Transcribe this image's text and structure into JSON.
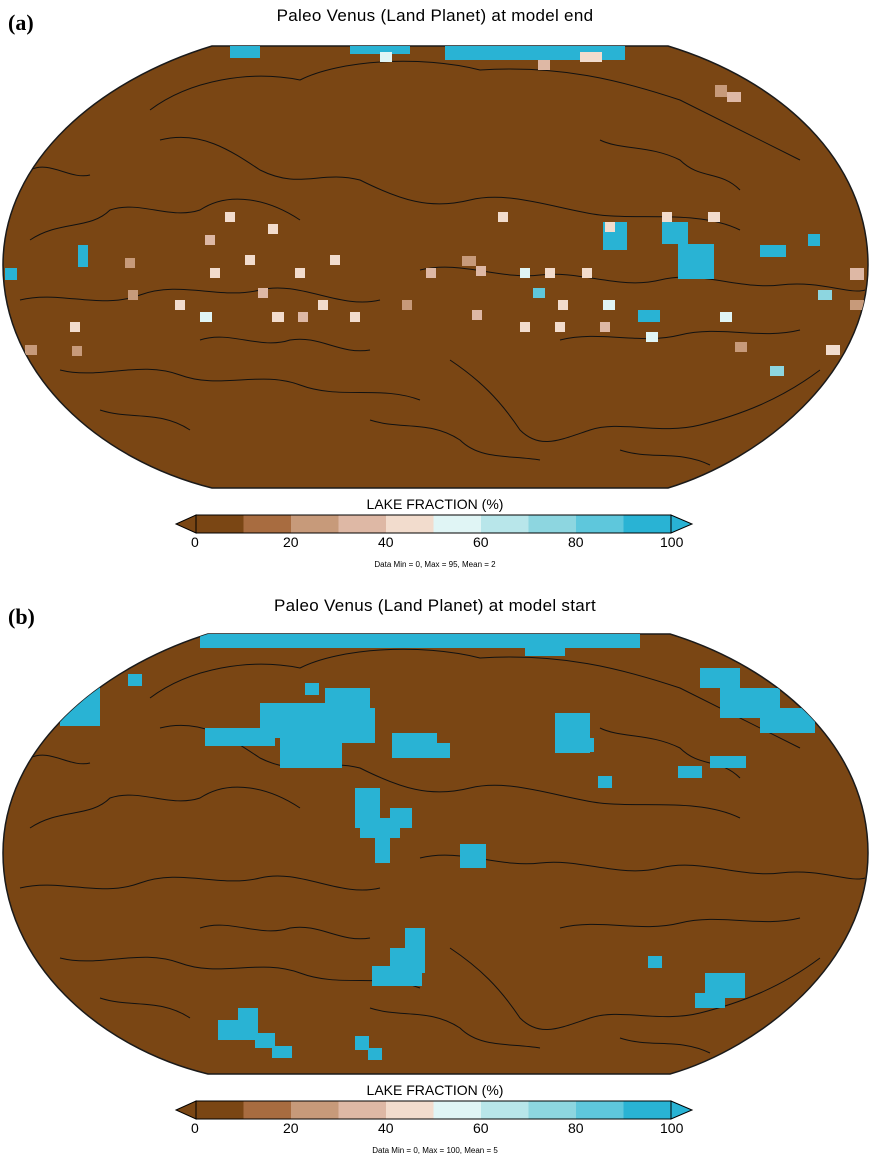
{
  "colors": {
    "land": "#7a4614",
    "ocean_edge": "#1a1a1a",
    "coast": "#111111",
    "lake": "#29b3d4",
    "palette": [
      "#7a4614",
      "#a86c40",
      "#c79a7a",
      "#deb8a5",
      "#f2dccd",
      "#e0f5f5",
      "#b8e6ea",
      "#8dd6e0",
      "#5ec7dc",
      "#29b3d4"
    ]
  },
  "panels": [
    {
      "letter": "(a)",
      "title": "Paleo Venus (Land Planet) at model end",
      "colorbar_title": "LAKE FRACTION (%)",
      "ticks": [
        "0",
        "20",
        "40",
        "60",
        "80",
        "100"
      ],
      "stats": "Data Min = 0, Max = 95, Mean = 2"
    },
    {
      "letter": "(b)",
      "title": "Paleo Venus (Land Planet) at model start",
      "colorbar_title": "LAKE FRACTION (%)",
      "ticks": [
        "0",
        "20",
        "40",
        "60",
        "80",
        "100"
      ],
      "stats": "Data Min = 0, Max = 100, Mean = 5"
    }
  ]
}
